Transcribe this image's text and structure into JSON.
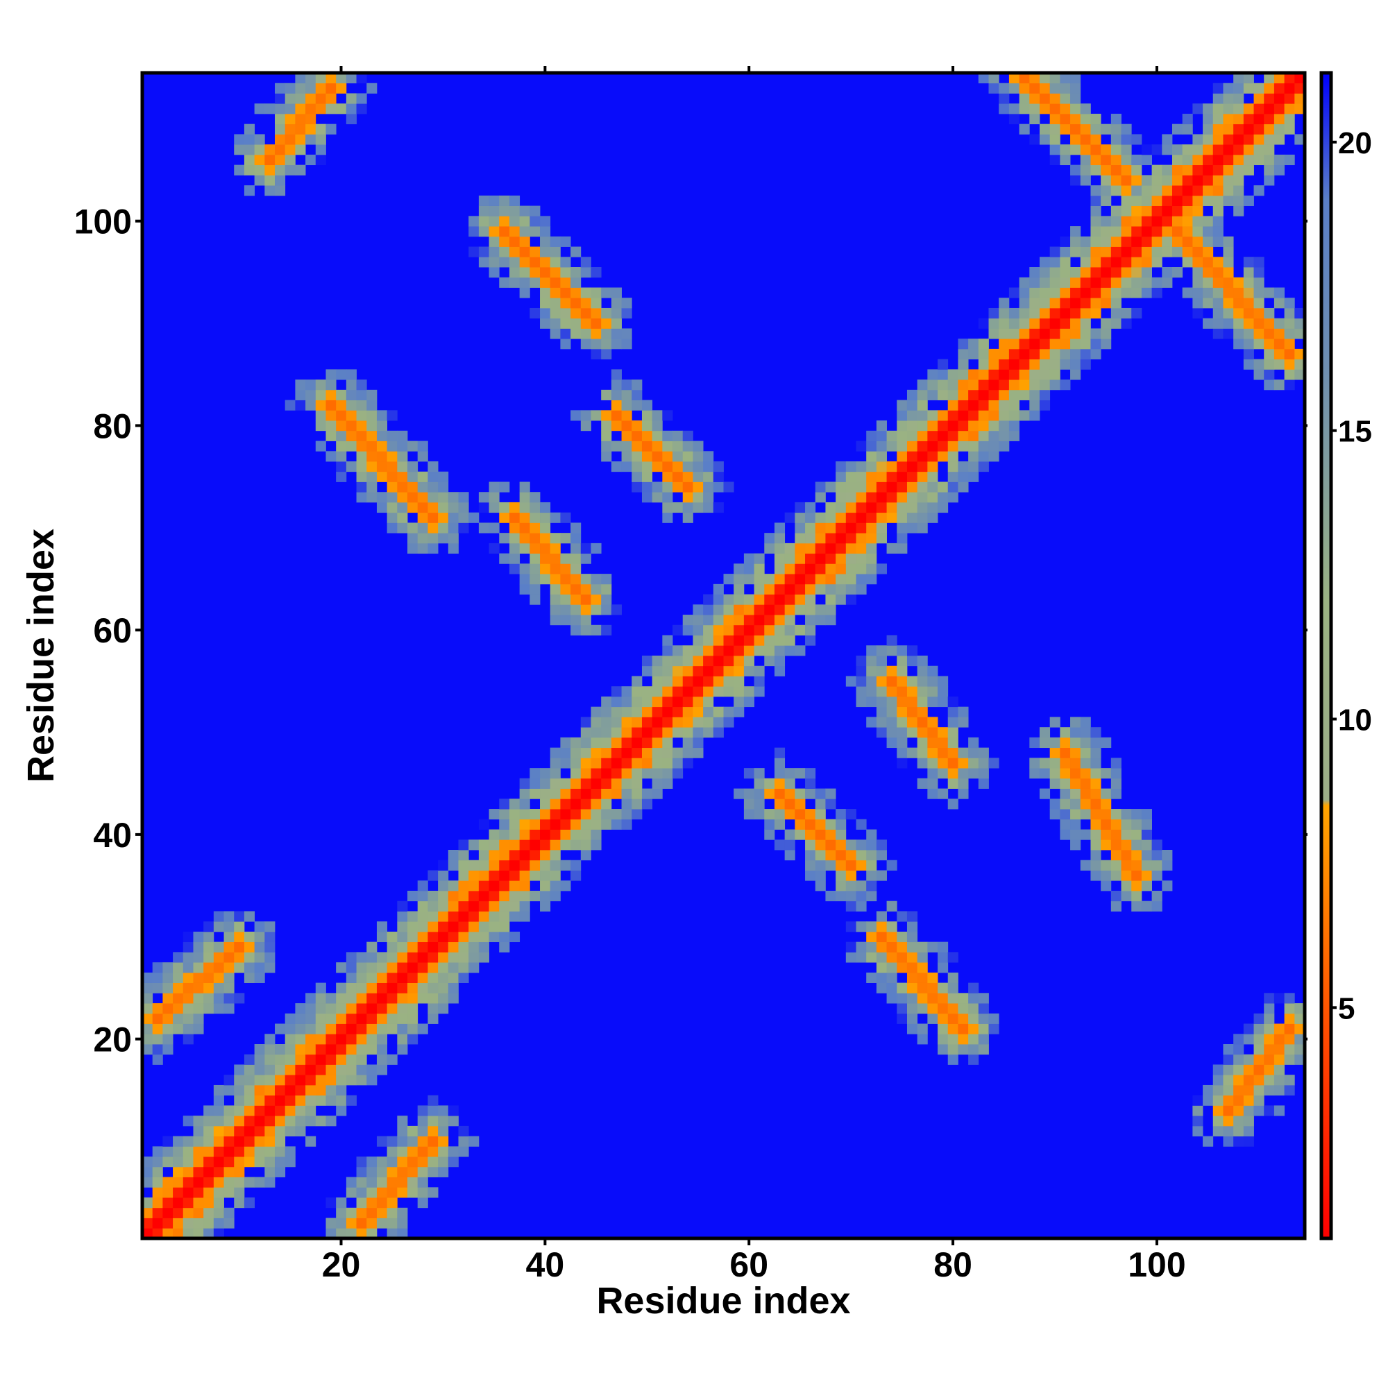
{
  "chart_data": {
    "type": "heatmap",
    "title": "",
    "xlabel": "Residue index",
    "ylabel": "Residue index",
    "n_residues": 114,
    "x_range": [
      1,
      114
    ],
    "y_range": [
      1,
      114
    ],
    "x_ticks": [
      20,
      40,
      60,
      80,
      100
    ],
    "y_ticks": [
      20,
      40,
      60,
      80,
      100
    ],
    "x_tick_labels": [
      "20",
      "40",
      "60",
      "80",
      "100"
    ],
    "y_tick_labels": [
      "20",
      "40",
      "60",
      "80",
      "100"
    ],
    "colorbar": {
      "range": [
        1,
        21.2
      ],
      "ticks": [
        5,
        10,
        15,
        20
      ],
      "tick_labels": [
        "5",
        "10",
        "15",
        "20"
      ],
      "stops": [
        {
          "value": 1,
          "color": "#ff0000"
        },
        {
          "value": 4.5,
          "color": "#ff4a00"
        },
        {
          "value": 8.5,
          "color": "#ffa500"
        },
        {
          "value": 8.6,
          "color": "#9cae88"
        },
        {
          "value": 12,
          "color": "#9ab282"
        },
        {
          "value": 16,
          "color": "#6f8fb0"
        },
        {
          "value": 19,
          "color": "#5a7fc8"
        },
        {
          "value": 21.2,
          "color": "#0000ff"
        }
      ]
    },
    "contact_distance_matrix": {
      "description_units": "distance between residue pairs (colorbar units)",
      "diagonal_value": 1,
      "background_value": 21,
      "bands": [
        {
          "i_start": 1,
          "j_start": 1,
          "i_end": 114,
          "j_end": 114,
          "value": 1
        },
        {
          "i_start": 22,
          "j_start": 2,
          "i_end": 29,
          "j_end": 10,
          "value": 6
        },
        {
          "i_start": 2,
          "j_start": 22,
          "i_end": 10,
          "j_end": 29,
          "value": 6
        },
        {
          "i_start": 73,
          "j_start": 30,
          "i_end": 81,
          "j_end": 21,
          "value": 6
        },
        {
          "i_start": 63,
          "j_start": 44,
          "i_end": 70,
          "j_end": 37,
          "value": 6
        },
        {
          "i_start": 74,
          "j_start": 55,
          "i_end": 80,
          "j_end": 47,
          "value": 6
        },
        {
          "i_start": 91,
          "j_start": 48,
          "i_end": 98,
          "j_end": 36,
          "value": 6
        },
        {
          "i_start": 19,
          "j_start": 82,
          "i_end": 29,
          "j_end": 71,
          "value": 6
        },
        {
          "i_start": 37,
          "j_start": 71,
          "i_end": 44,
          "j_end": 63,
          "value": 6
        },
        {
          "i_start": 47,
          "j_start": 81,
          "i_end": 54,
          "j_end": 74,
          "value": 6
        },
        {
          "i_start": 36,
          "j_start": 99,
          "i_end": 45,
          "j_end": 90,
          "value": 6
        },
        {
          "i_start": 87,
          "j_start": 114,
          "i_end": 97,
          "j_end": 104,
          "value": 6
        },
        {
          "i_start": 102,
          "j_start": 99,
          "i_end": 113,
          "j_end": 87,
          "value": 6
        },
        {
          "i_start": 19,
          "j_start": 113,
          "i_end": 13,
          "j_end": 106,
          "value": 6
        },
        {
          "i_start": 113,
          "j_start": 21,
          "i_end": 107,
          "j_end": 13,
          "value": 6
        }
      ]
    },
    "grid": false,
    "legend": "none"
  }
}
